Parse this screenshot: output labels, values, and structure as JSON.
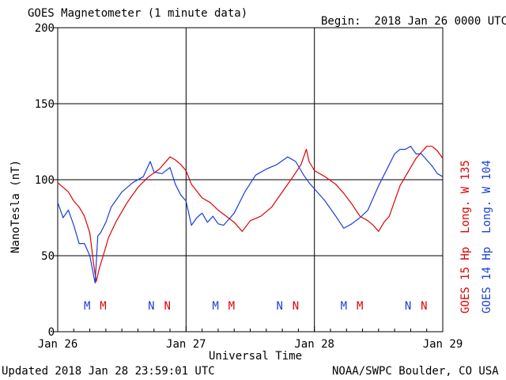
{
  "header": {
    "title": "GOES Magnetometer (1 minute data)",
    "begin": "Begin:  2018 Jan 26 0000 UTC"
  },
  "footer": {
    "updated": "Updated 2018 Jan 28 23:59:01 UTC",
    "source": "NOAA/SWPC Boulder, CO USA"
  },
  "colors": {
    "goes15": "#e00000",
    "goes14": "#1a3fd6",
    "grid": "#000000"
  },
  "chart_data": {
    "type": "line",
    "title": "GOES Magnetometer (1 minute data)",
    "xlabel": "Universal Time",
    "ylabel": "NanoTesla (nT)",
    "xlim": [
      0,
      72
    ],
    "ylim": [
      0,
      200
    ],
    "yticks": [
      0,
      50,
      100,
      150,
      200
    ],
    "xtick_labels": [
      {
        "x": 0,
        "label": "Jan 26"
      },
      {
        "x": 24,
        "label": "Jan 27"
      },
      {
        "x": 48,
        "label": "Jan 28"
      },
      {
        "x": 72,
        "label": "Jan 29"
      }
    ],
    "grid": true,
    "legend": [
      {
        "label": "GOES 15 Hp  Long. W 135",
        "color": "#e00000"
      },
      {
        "label": "GOES 14 Hp  Long. W 104",
        "color": "#1a3fd6"
      }
    ],
    "markers": [
      {
        "x": 5.5,
        "label": "M",
        "series": "GOES 14"
      },
      {
        "x": 8.5,
        "label": "M",
        "series": "GOES 15"
      },
      {
        "x": 17.5,
        "label": "N",
        "series": "GOES 14"
      },
      {
        "x": 20.5,
        "label": "N",
        "series": "GOES 15"
      },
      {
        "x": 29.5,
        "label": "M",
        "series": "GOES 14"
      },
      {
        "x": 32.5,
        "label": "M",
        "series": "GOES 15"
      },
      {
        "x": 41.5,
        "label": "N",
        "series": "GOES 14"
      },
      {
        "x": 44.5,
        "label": "N",
        "series": "GOES 15"
      },
      {
        "x": 53.5,
        "label": "M",
        "series": "GOES 14"
      },
      {
        "x": 56.5,
        "label": "M",
        "series": "GOES 15"
      },
      {
        "x": 65.5,
        "label": "N",
        "series": "GOES 14"
      },
      {
        "x": 68.5,
        "label": "N",
        "series": "GOES 15"
      }
    ],
    "series": [
      {
        "name": "GOES 15 Hp  Long. W 135",
        "color": "#e00000",
        "x": [
          0,
          1,
          2,
          3,
          4,
          5,
          6,
          6.7,
          7.2,
          7.8,
          8.5,
          9.5,
          11,
          13,
          15,
          17,
          19,
          21,
          22,
          23,
          24,
          25,
          27,
          28.5,
          30,
          31.5,
          33,
          34.5,
          36,
          38,
          40,
          42,
          44,
          45.5,
          46.5,
          47,
          48,
          50,
          52,
          53.5,
          55,
          56.5,
          58,
          59,
          60,
          61,
          62,
          64,
          66,
          67,
          68,
          69,
          70,
          71,
          72
        ],
        "y": [
          98,
          95,
          92,
          86,
          82,
          76,
          65,
          45,
          33,
          42,
          50,
          62,
          73,
          85,
          95,
          102,
          107,
          115,
          113,
          110,
          106,
          97,
          88,
          85,
          80,
          76,
          72,
          66,
          73,
          76,
          82,
          92,
          102,
          110,
          120,
          112,
          106,
          102,
          97,
          91,
          84,
          76,
          73,
          70,
          66,
          72,
          76,
          96,
          108,
          114,
          118,
          122,
          122,
          119,
          114
        ]
      },
      {
        "name": "GOES 14 Hp  Long. W 104",
        "color": "#1a3fd6",
        "x": [
          0,
          1,
          2,
          3,
          4,
          5,
          6,
          7,
          7.5,
          8,
          9,
          10,
          12,
          14,
          16,
          17.3,
          18,
          19.5,
          21,
          22,
          23,
          24,
          25,
          26,
          27,
          28,
          29,
          30,
          31,
          33,
          35,
          37,
          39,
          41,
          43,
          44.5,
          46,
          47,
          48,
          50,
          52,
          53.5,
          55,
          56.5,
          58,
          60,
          62,
          63,
          64,
          65,
          66,
          67,
          68,
          69,
          70,
          71,
          72
        ],
        "y": [
          85,
          75,
          80,
          70,
          58,
          58,
          50,
          32,
          63,
          65,
          72,
          82,
          92,
          98,
          102,
          112,
          105,
          104,
          108,
          97,
          90,
          86,
          70,
          75,
          78,
          72,
          76,
          71,
          70,
          78,
          92,
          103,
          107,
          110,
          115,
          112,
          103,
          98,
          94,
          86,
          76,
          68,
          71,
          75,
          80,
          96,
          110,
          117,
          120,
          120,
          122,
          117,
          117,
          113,
          109,
          104,
          102
        ]
      }
    ]
  }
}
